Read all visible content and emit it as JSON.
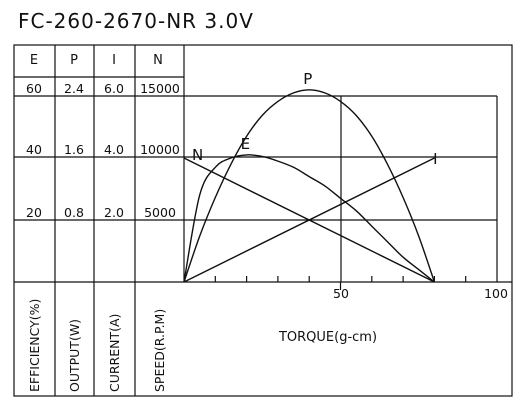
{
  "chart_data": {
    "type": "line",
    "title": "FC-260-2670-NR   3.0V",
    "column_headers": [
      "E",
      "P",
      "I",
      "N"
    ],
    "scale_rows": [
      [
        "60",
        "2.4",
        "6.0",
        "15000"
      ],
      [
        "40",
        "1.6",
        "4.0",
        "10000"
      ],
      [
        "20",
        "0.8",
        "2.0",
        "5000"
      ]
    ],
    "column_labels": [
      "EFFICIENCY(%)",
      "OUTPUT(W)",
      "CURRENT(A)",
      "SPEED(R.P.M)"
    ],
    "xlabel": "TORQUE(g-cm)",
    "x_ticks": [
      "50",
      "100"
    ],
    "xlim": [
      0,
      100
    ],
    "series": [
      {
        "name": "N",
        "x": [
          0,
          80
        ],
        "y": [
          10000,
          0
        ]
      },
      {
        "name": "E",
        "x": [
          0,
          5,
          10,
          15,
          20,
          25,
          30,
          35,
          40,
          45,
          50,
          55,
          60,
          65,
          70,
          75,
          80
        ],
        "y": [
          0,
          28,
          37,
          40,
          41,
          40.5,
          39,
          37,
          34,
          31,
          27,
          23,
          18,
          13,
          8,
          4,
          0
        ]
      },
      {
        "name": "P",
        "x": [
          0,
          5,
          10,
          15,
          20,
          25,
          30,
          35,
          40,
          45,
          50,
          55,
          60,
          65,
          70,
          75,
          80
        ],
        "y": [
          0,
          0.59,
          1.09,
          1.52,
          1.88,
          2.15,
          2.33,
          2.44,
          2.48,
          2.44,
          2.33,
          2.15,
          1.88,
          1.52,
          1.09,
          0.59,
          0
        ]
      },
      {
        "name": "I",
        "x": [
          0,
          80
        ],
        "y": [
          0,
          4.0
        ]
      }
    ]
  }
}
